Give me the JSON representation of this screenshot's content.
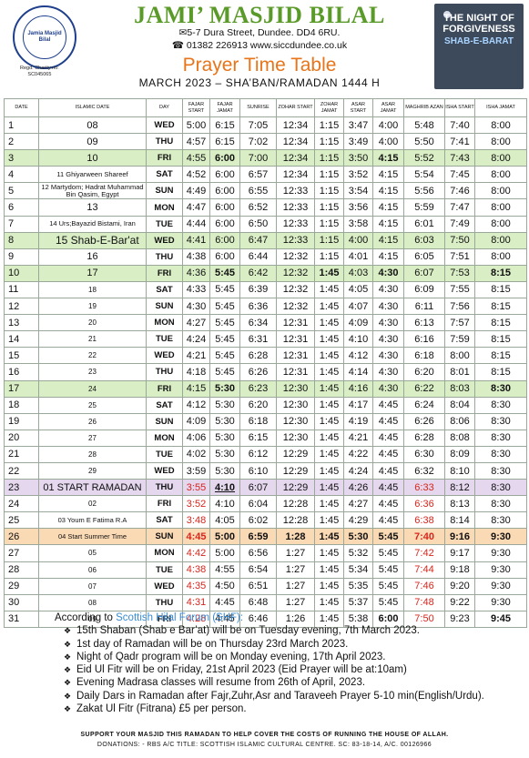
{
  "header": {
    "masjid_name": "JAMI’ MASJID BILAL",
    "address": "5-7 Dura Street, Dundee. DD4 6RU.",
    "contact": "01382 226913 www.siccdundee.co.uk",
    "title": "Prayer Time Table",
    "subtitle": "MARCH 2023 – SHA’BAN/RAMADAN 1444 H",
    "seal_text": "Jamia Masjid Bilal",
    "seal_ring_text": "Scottish Islamic and Cultural Centre",
    "charity_line1": "Regd. Charity no:",
    "charity_line2": "SC045065"
  },
  "banner": {
    "line1": "THE NIGHT OF",
    "line2": "FORGIVENESS",
    "line3": "SHAB-E-BARAT"
  },
  "columns": [
    "DATE",
    "ISLAMIC DATE",
    "DAY",
    "FAJAR START",
    "FAJAR JAMAT",
    "SUNRISE",
    "ZOHAR START",
    "ZOHAR JAMAT",
    "ASAR START",
    "ASAR JAMAT",
    "MAGHRIB AZAN",
    "ISHA START",
    "ISHA JAMAT"
  ],
  "rows": [
    {
      "d": "1",
      "i": "08",
      "day": "WED",
      "t": [
        "5:00",
        "6:15",
        "7:05",
        "12:34",
        "1:15",
        "3:47",
        "4:00",
        "5:48",
        "7:40",
        "8:00"
      ]
    },
    {
      "d": "2",
      "i": "09",
      "day": "THU",
      "t": [
        "4:57",
        "6:15",
        "7:02",
        "12:34",
        "1:15",
        "3:49",
        "4:00",
        "5:50",
        "7:41",
        "8:00"
      ]
    },
    {
      "d": "3",
      "i": "10",
      "day": "FRI",
      "t": [
        "4:55",
        "6:00",
        "7:00",
        "12:34",
        "1:15",
        "3:50",
        "4:15",
        "5:52",
        "7:43",
        "8:00"
      ]
    },
    {
      "d": "4",
      "i": "11 Ghiyarween Shareef",
      "day": "SAT",
      "t": [
        "4:52",
        "6:00",
        "6:57",
        "12:34",
        "1:15",
        "3:52",
        "4:15",
        "5:54",
        "7:45",
        "8:00"
      ]
    },
    {
      "d": "5",
      "i": "12 Martydom; Hadrat Muhammad Bin Qasim, Egypt",
      "day": "SUN",
      "t": [
        "4:49",
        "6:00",
        "6:55",
        "12:33",
        "1:15",
        "3:54",
        "4:15",
        "5:56",
        "7:46",
        "8:00"
      ]
    },
    {
      "d": "6",
      "i": "13",
      "day": "MON",
      "t": [
        "4:47",
        "6:00",
        "6:52",
        "12:33",
        "1:15",
        "3:56",
        "4:15",
        "5:59",
        "7:47",
        "8:00"
      ]
    },
    {
      "d": "7",
      "i": "14 Urs;Bayazid Bistami, Iran",
      "day": "TUE",
      "t": [
        "4:44",
        "6:00",
        "6:50",
        "12:33",
        "1:15",
        "3:58",
        "4:15",
        "6:01",
        "7:49",
        "8:00"
      ]
    },
    {
      "d": "8",
      "i": "15 Shab-E-Bar'at",
      "day": "WED",
      "t": [
        "4:41",
        "6:00",
        "6:47",
        "12:33",
        "1:15",
        "4:00",
        "4:15",
        "6:03",
        "7:50",
        "8:00"
      ]
    },
    {
      "d": "9",
      "i": "16",
      "day": "THU",
      "t": [
        "4:38",
        "6:00",
        "6:44",
        "12:32",
        "1:15",
        "4:01",
        "4:15",
        "6:05",
        "7:51",
        "8:00"
      ]
    },
    {
      "d": "10",
      "i": "17",
      "day": "FRI",
      "t": [
        "4:36",
        "5:45",
        "6:42",
        "12:32",
        "1:45",
        "4:03",
        "4:30",
        "6:07",
        "7:53",
        "8:15"
      ]
    },
    {
      "d": "11",
      "i": "18",
      "day": "SAT",
      "t": [
        "4:33",
        "5:45",
        "6:39",
        "12:32",
        "1:45",
        "4:05",
        "4:30",
        "6:09",
        "7:55",
        "8:15"
      ]
    },
    {
      "d": "12",
      "i": "19",
      "day": "SUN",
      "t": [
        "4:30",
        "5:45",
        "6:36",
        "12:32",
        "1:45",
        "4:07",
        "4:30",
        "6:11",
        "7:56",
        "8:15"
      ]
    },
    {
      "d": "13",
      "i": "20",
      "day": "MON",
      "t": [
        "4:27",
        "5:45",
        "6:34",
        "12:31",
        "1:45",
        "4:09",
        "4:30",
        "6:13",
        "7:57",
        "8:15"
      ]
    },
    {
      "d": "14",
      "i": "21",
      "day": "TUE",
      "t": [
        "4:24",
        "5:45",
        "6:31",
        "12:31",
        "1:45",
        "4:10",
        "4:30",
        "6:16",
        "7:59",
        "8:15"
      ]
    },
    {
      "d": "15",
      "i": "22",
      "day": "WED",
      "t": [
        "4:21",
        "5:45",
        "6:28",
        "12:31",
        "1:45",
        "4:12",
        "4:30",
        "6:18",
        "8:00",
        "8:15"
      ]
    },
    {
      "d": "16",
      "i": "23",
      "day": "THU",
      "t": [
        "4:18",
        "5:45",
        "6:26",
        "12:31",
        "1:45",
        "4:14",
        "4:30",
        "6:20",
        "8:01",
        "8:15"
      ]
    },
    {
      "d": "17",
      "i": "24",
      "day": "FRI",
      "t": [
        "4:15",
        "5:30",
        "6:23",
        "12:30",
        "1:45",
        "4:16",
        "4:30",
        "6:22",
        "8:03",
        "8:30"
      ]
    },
    {
      "d": "18",
      "i": "25",
      "day": "SAT",
      "t": [
        "4:12",
        "5:30",
        "6:20",
        "12:30",
        "1:45",
        "4:17",
        "4:45",
        "6:24",
        "8:04",
        "8:30"
      ]
    },
    {
      "d": "19",
      "i": "26",
      "day": "SUN",
      "t": [
        "4:09",
        "5:30",
        "6:18",
        "12:30",
        "1:45",
        "4:19",
        "4:45",
        "6:26",
        "8:06",
        "8:30"
      ]
    },
    {
      "d": "20",
      "i": "27",
      "day": "MON",
      "t": [
        "4:06",
        "5:30",
        "6:15",
        "12:30",
        "1:45",
        "4:21",
        "4:45",
        "6:28",
        "8:08",
        "8:30"
      ]
    },
    {
      "d": "21",
      "i": "28",
      "day": "TUE",
      "t": [
        "4:02",
        "5:30",
        "6:12",
        "12:29",
        "1:45",
        "4:22",
        "4:45",
        "6:30",
        "8:09",
        "8:30"
      ]
    },
    {
      "d": "22",
      "i": "29",
      "day": "WED",
      "t": [
        "3:59",
        "5:30",
        "6:10",
        "12:29",
        "1:45",
        "4:24",
        "4:45",
        "6:32",
        "8:10",
        "8:30"
      ]
    },
    {
      "d": "23",
      "i": "01 START RAMADAN",
      "day": "THU",
      "t": [
        "3:55",
        "4:10",
        "6:07",
        "12:29",
        "1:45",
        "4:26",
        "4:45",
        "6:33",
        "8:12",
        "8:30"
      ]
    },
    {
      "d": "24",
      "i": "02",
      "day": "FRI",
      "t": [
        "3:52",
        "4:10",
        "6:04",
        "12:28",
        "1:45",
        "4:27",
        "4:45",
        "6:36",
        "8:13",
        "8:30"
      ]
    },
    {
      "d": "25",
      "i": "03 Youm E Fatima R.A",
      "day": "SAT",
      "t": [
        "3:48",
        "4:05",
        "6:02",
        "12:28",
        "1:45",
        "4:29",
        "4:45",
        "6:38",
        "8:14",
        "8:30"
      ]
    },
    {
      "d": "26",
      "i": "04 Start Summer Time",
      "day": "SUN",
      "t": [
        "4:45",
        "5:00",
        "6:59",
        "1:28",
        "1:45",
        "5:30",
        "5:45",
        "7:40",
        "9:16",
        "9:30"
      ]
    },
    {
      "d": "27",
      "i": "05",
      "day": "MON",
      "t": [
        "4:42",
        "5:00",
        "6:56",
        "1:27",
        "1:45",
        "5:32",
        "5:45",
        "7:42",
        "9:17",
        "9:30"
      ]
    },
    {
      "d": "28",
      "i": "06",
      "day": "TUE",
      "t": [
        "4:38",
        "4:55",
        "6:54",
        "1:27",
        "1:45",
        "5:34",
        "5:45",
        "7:44",
        "9:18",
        "9:30"
      ]
    },
    {
      "d": "29",
      "i": "07",
      "day": "WED",
      "t": [
        "4:35",
        "4:50",
        "6:51",
        "1:27",
        "1:45",
        "5:35",
        "5:45",
        "7:46",
        "9:20",
        "9:30"
      ]
    },
    {
      "d": "30",
      "i": "08",
      "day": "THU",
      "t": [
        "4:31",
        "4:45",
        "6:48",
        "1:27",
        "1:45",
        "5:37",
        "5:45",
        "7:48",
        "9:22",
        "9:30"
      ]
    },
    {
      "d": "31",
      "i": "09",
      "day": "FRI",
      "t": [
        "4:28",
        "4:45",
        "6:46",
        "1:26",
        "1:45",
        "5:38",
        "6:00",
        "7:50",
        "9:23",
        "9:45"
      ]
    }
  ],
  "footer": {
    "intro_prefix": "According to",
    "intro_link": "Scottish Hilal Forum (SHF):",
    "notes": [
      "15th Shaban (Shab e Bar’at) will be on Tuesday evening, 7th March 2023.",
      "1st day of Ramadan will be on Thursday 23rd March 2023.",
      "Night of Qadr program will be on Monday evening, 17th April 2023.",
      "Eid Ul Fitr will be on Friday, 21st April 2023 (Eid Prayer will be at:10am)",
      "Evening Madrasa classes will resume from 26th of April, 2023.",
      "Daily Dars in Ramadan after Fajr,Zuhr,Asr and Taraveeh Prayer 5-10 min(English/Urdu).",
      "Zakat Ul Fitr (Fitrana) £5 per person."
    ],
    "support": "SUPPORT YOUR MASJID THIS RAMADAN TO HELP COVER THE COSTS OF RUNNING THE HOUSE OF ALLAH.",
    "donations": "DONATIONS: - RBS A/C TITLE: SCOTTISH ISLAMIC CULTURAL CENTRE. SC: 83-18-14, A/C. 00126966"
  },
  "colors": {
    "green_row": "#d9eec5",
    "purple_row": "#e4d7ee",
    "orange_row": "#fad9b5",
    "red_text": "#d9251c",
    "title_green": "#5a9a28",
    "title_orange": "#e8751a"
  }
}
